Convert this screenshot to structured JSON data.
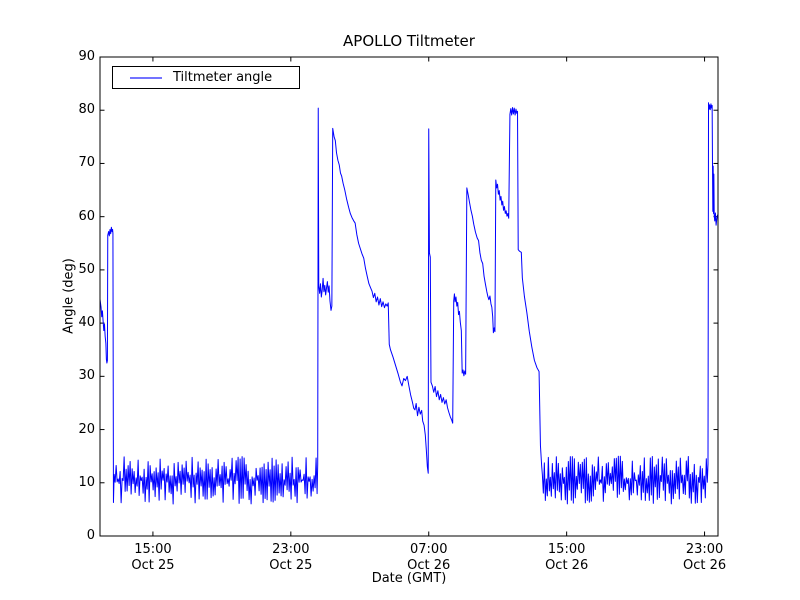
{
  "figure": {
    "title": "APOLLO Tiltmeter",
    "xlabel": "Date (GMT)",
    "ylabel": "Angle (deg)"
  },
  "legend": {
    "position": "upper left",
    "entries": [
      {
        "label": "Tiltmeter angle",
        "color": "#0000ff"
      }
    ]
  },
  "colors": {
    "line": "#0000ff",
    "frame": "#000000",
    "background": "#ffffff",
    "text": "#000000"
  },
  "chart_data": {
    "type": "line",
    "title": "APOLLO Tiltmeter",
    "xlabel": "Date (GMT)",
    "ylabel": "Angle (deg)",
    "grid": false,
    "x_unit": "hours from left edge (~12:00 Oct 25 GMT)",
    "xlim": [
      0,
      35.85
    ],
    "ylim": [
      0,
      90
    ],
    "yticks": [
      0,
      10,
      20,
      30,
      40,
      50,
      60,
      70,
      80,
      90
    ],
    "xticks": [
      {
        "t": 3.07,
        "time": "15:00",
        "date": "Oct 25"
      },
      {
        "t": 11.07,
        "time": "23:00",
        "date": "Oct 25"
      },
      {
        "t": 19.07,
        "time": "07:00",
        "date": "Oct 26"
      },
      {
        "t": 27.07,
        "time": "15:00",
        "date": "Oct 26"
      },
      {
        "t": 35.07,
        "time": "23:00",
        "date": "Oct 26"
      }
    ],
    "series": [
      {
        "name": "Tiltmeter angle",
        "color": "#0000ff",
        "segments": [
          {
            "type": "points",
            "pts": [
              [
                0,
                44.5
              ],
              [
                0.06,
                43
              ],
              [
                0.1,
                41.2
              ],
              [
                0.14,
                42.3
              ],
              [
                0.18,
                40.4
              ],
              [
                0.22,
                38.6
              ],
              [
                0.26,
                39.8
              ],
              [
                0.3,
                37.5
              ],
              [
                0.34,
                36.2
              ],
              [
                0.37,
                33.2
              ],
              [
                0.4,
                32.5
              ],
              [
                0.43,
                33
              ],
              [
                0.45,
                56.5
              ],
              [
                0.5,
                57.2
              ],
              [
                0.54,
                56.4
              ],
              [
                0.58,
                57.6
              ],
              [
                0.62,
                56.8
              ],
              [
                0.66,
                58
              ],
              [
                0.7,
                57.2
              ],
              [
                0.73,
                57.6
              ],
              [
                0.75,
                56.9
              ],
              [
                0.78,
                6.3
              ]
            ]
          },
          {
            "type": "noise",
            "t0": 0.82,
            "t1": 12.6,
            "dt": 0.058,
            "min": 6.0,
            "max": 15.0,
            "seed": 7
          },
          {
            "type": "points",
            "pts": [
              [
                12.63,
                13.5
              ],
              [
                12.66,
                80.4
              ],
              [
                12.69,
                47
              ],
              [
                12.74,
                45.6
              ],
              [
                12.79,
                47.4
              ],
              [
                12.84,
                44.9
              ],
              [
                12.89,
                46.2
              ],
              [
                12.94,
                48.4
              ],
              [
                12.99,
                45.9
              ],
              [
                13.04,
                47.1
              ],
              [
                13.09,
                45.3
              ],
              [
                13.14,
                46.6
              ],
              [
                13.19,
                47.8
              ],
              [
                13.24,
                45.8
              ],
              [
                13.29,
                47
              ],
              [
                13.34,
                44.2
              ],
              [
                13.4,
                42.4
              ],
              [
                13.45,
                43.2
              ],
              [
                13.5,
                76.6
              ],
              [
                13.58,
                75
              ],
              [
                13.65,
                74.3
              ],
              [
                13.72,
                72
              ],
              [
                13.8,
                70.6
              ],
              [
                13.88,
                69.7
              ],
              [
                13.95,
                68.2
              ],
              [
                14.02,
                67.6
              ],
              [
                14.1,
                66.3
              ],
              [
                14.2,
                65
              ],
              [
                14.3,
                63.4
              ],
              [
                14.42,
                61.8
              ],
              [
                14.52,
                60.6
              ],
              [
                14.62,
                59.8
              ],
              [
                14.72,
                59.2
              ],
              [
                14.8,
                58.8
              ],
              [
                14.9,
                56.6
              ],
              [
                15.0,
                55
              ],
              [
                15.1,
                54
              ],
              [
                15.2,
                53
              ],
              [
                15.3,
                52.2
              ],
              [
                15.4,
                50.3
              ],
              [
                15.5,
                48.8
              ],
              [
                15.6,
                47.4
              ],
              [
                15.7,
                46.6
              ],
              [
                15.78,
                46
              ],
              [
                15.86,
                44.8
              ],
              [
                15.94,
                45.6
              ],
              [
                16.02,
                44
              ],
              [
                16.1,
                44.9
              ],
              [
                16.18,
                43.4
              ],
              [
                16.26,
                44.6
              ],
              [
                16.34,
                43.1
              ],
              [
                16.42,
                44
              ],
              [
                16.5,
                42.9
              ],
              [
                16.58,
                43.6
              ],
              [
                16.66,
                43.2
              ],
              [
                16.72,
                43.8
              ],
              [
                16.78,
                36
              ],
              [
                16.85,
                35
              ],
              [
                17.0,
                33.6
              ],
              [
                17.15,
                32
              ],
              [
                17.3,
                30.4
              ],
              [
                17.42,
                29
              ],
              [
                17.52,
                28.2
              ],
              [
                17.62,
                29.6
              ],
              [
                17.72,
                29.2
              ],
              [
                17.82,
                30
              ],
              [
                17.92,
                28.2
              ],
              [
                18.02,
                26.5
              ],
              [
                18.12,
                25.2
              ],
              [
                18.2,
                24
              ],
              [
                18.27,
                23.7
              ],
              [
                18.34,
                24.9
              ],
              [
                18.42,
                22.6
              ],
              [
                18.5,
                24.2
              ],
              [
                18.58,
                22.9
              ],
              [
                18.66,
                23.6
              ],
              [
                18.72,
                21.6
              ],
              [
                18.8,
                20.8
              ],
              [
                18.87,
                19
              ],
              [
                18.93,
                16.2
              ],
              [
                18.99,
                13
              ],
              [
                19.04,
                11.8
              ],
              [
                19.07,
                76.5
              ],
              [
                19.11,
                53.2
              ],
              [
                19.16,
                52.4
              ],
              [
                19.2,
                28.9
              ],
              [
                19.28,
                28.2
              ],
              [
                19.36,
                27
              ],
              [
                19.44,
                28.1
              ],
              [
                19.52,
                26.2
              ],
              [
                19.6,
                27.3
              ],
              [
                19.68,
                25.6
              ],
              [
                19.76,
                26.6
              ],
              [
                19.84,
                25.1
              ],
              [
                19.92,
                26
              ],
              [
                20.0,
                24.8
              ],
              [
                20.08,
                25.6
              ],
              [
                20.16,
                24.1
              ],
              [
                20.24,
                23.2
              ],
              [
                20.32,
                22.4
              ],
              [
                20.4,
                21.8
              ],
              [
                20.46,
                21.2
              ],
              [
                20.52,
                44.2
              ],
              [
                20.56,
                45.5
              ],
              [
                20.6,
                44
              ],
              [
                20.65,
                44.9
              ],
              [
                20.7,
                43.2
              ],
              [
                20.75,
                43.9
              ],
              [
                20.8,
                41.6
              ],
              [
                20.85,
                42.2
              ],
              [
                20.9,
                40.2
              ],
              [
                20.96,
                38.6
              ],
              [
                21.01,
                30.6
              ],
              [
                21.06,
                31.2
              ],
              [
                21.11,
                30.1
              ],
              [
                21.16,
                31
              ],
              [
                21.21,
                30.4
              ],
              [
                21.28,
                65.4
              ],
              [
                21.36,
                64.1
              ],
              [
                21.44,
                62.6
              ],
              [
                21.52,
                61.2
              ],
              [
                21.6,
                60.1
              ],
              [
                21.68,
                58.6
              ],
              [
                21.78,
                57.1
              ],
              [
                21.88,
                56
              ],
              [
                21.96,
                55.5
              ],
              [
                22.04,
                53.2
              ],
              [
                22.12,
                51.8
              ],
              [
                22.2,
                51.2
              ],
              [
                22.28,
                48.8
              ],
              [
                22.36,
                47.3
              ],
              [
                22.44,
                45.9
              ],
              [
                22.5,
                45
              ],
              [
                22.56,
                44.4
              ],
              [
                22.62,
                45.1
              ],
              [
                22.68,
                43.6
              ],
              [
                22.73,
                43
              ],
              [
                22.78,
                41.2
              ],
              [
                22.82,
                38.2
              ],
              [
                22.87,
                39.1
              ],
              [
                22.91,
                38.4
              ],
              [
                22.96,
                66.9
              ],
              [
                23.01,
                65.4
              ],
              [
                23.06,
                66.1
              ],
              [
                23.11,
                64.2
              ],
              [
                23.16,
                64.9
              ],
              [
                23.21,
                63.1
              ],
              [
                23.26,
                63.8
              ],
              [
                23.31,
                62.2
              ],
              [
                23.36,
                62.9
              ],
              [
                23.41,
                61.2
              ],
              [
                23.46,
                61.9
              ],
              [
                23.51,
                60.6
              ],
              [
                23.56,
                61.1
              ],
              [
                23.61,
                60.1
              ],
              [
                23.66,
                60.6
              ],
              [
                23.71,
                59.7
              ],
              [
                23.78,
                79.2
              ],
              [
                23.83,
                80.3
              ],
              [
                23.88,
                79.1
              ],
              [
                23.93,
                80.5
              ],
              [
                23.98,
                79.3
              ],
              [
                24.03,
                80.4
              ],
              [
                24.08,
                79.1
              ],
              [
                24.13,
                80.2
              ],
              [
                24.18,
                79.4
              ],
              [
                24.22,
                79.8
              ],
              [
                24.26,
                53.8
              ],
              [
                24.34,
                53.5
              ],
              [
                24.44,
                53.3
              ],
              [
                24.5,
                48.5
              ],
              [
                24.62,
                45
              ],
              [
                24.76,
                42
              ],
              [
                24.9,
                38.5
              ],
              [
                25.05,
                35.5
              ],
              [
                25.2,
                33
              ],
              [
                25.35,
                31.6
              ],
              [
                25.47,
                30.9
              ],
              [
                25.55,
                17
              ],
              [
                25.62,
                13.2
              ]
            ]
          },
          {
            "type": "noise",
            "t0": 25.66,
            "t1": 35.24,
            "dt": 0.058,
            "min": 6.0,
            "max": 15.0,
            "seed": 13
          },
          {
            "type": "points",
            "pts": [
              [
                35.27,
                13.5
              ],
              [
                35.3,
                81.4
              ],
              [
                35.33,
                80.2
              ],
              [
                35.36,
                81
              ],
              [
                35.4,
                80.1
              ],
              [
                35.44,
                81.2
              ],
              [
                35.48,
                80.4
              ],
              [
                35.51,
                80.9
              ],
              [
                35.53,
                70.3
              ],
              [
                35.55,
                61
              ],
              [
                35.57,
                69.5
              ],
              [
                35.59,
                60.6
              ],
              [
                35.61,
                68
              ],
              [
                35.63,
                60.3
              ],
              [
                35.66,
                59.2
              ],
              [
                35.7,
                60.7
              ],
              [
                35.74,
                58.4
              ],
              [
                35.78,
                59.6
              ],
              [
                35.82,
                60.3
              ],
              [
                35.85,
                59.8
              ]
            ]
          }
        ]
      }
    ]
  }
}
